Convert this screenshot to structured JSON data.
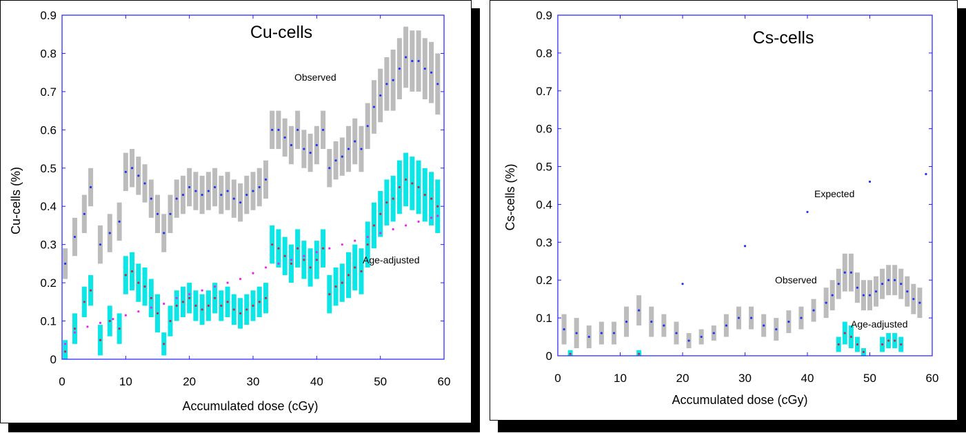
{
  "chart_data": [
    {
      "type": "line",
      "title": "Cu-cells",
      "xlabel": "Accumulated dose (cGy)",
      "ylabel": "Cu-cells (%)",
      "xlim": [
        0,
        60
      ],
      "ylim": [
        0,
        0.9
      ],
      "x_ticks": [
        "0",
        "10",
        "20",
        "30",
        "40",
        "50",
        "60"
      ],
      "y_ticks": [
        "0",
        "0.1",
        "0.2",
        "0.3",
        "0.4",
        "0.5",
        "0.6",
        "0.7",
        "0.8",
        "0.9"
      ],
      "grid": false,
      "annotations": [
        {
          "text": "Observed",
          "x": 37,
          "y": 0.73
        },
        {
          "text": "Age-adjusted",
          "x": 47,
          "y": 0.25
        }
      ],
      "series": [
        {
          "label": "Observed",
          "marker_color": "#2233ee",
          "band_color": "#b8b8b8",
          "x": [
            0.5,
            2,
            3.5,
            4.5,
            6,
            7.5,
            9,
            10,
            11,
            12,
            13,
            14,
            15,
            16,
            17,
            18,
            19,
            20,
            21,
            22,
            23,
            24,
            25,
            26,
            27,
            28,
            29,
            30,
            31,
            32,
            33,
            34,
            35,
            36,
            37,
            38,
            39,
            40,
            41,
            42,
            43,
            44,
            45,
            46,
            47,
            48,
            49,
            50,
            51,
            52,
            53,
            54,
            55,
            56,
            57,
            58,
            59
          ],
          "y": [
            0.25,
            0.32,
            0.38,
            0.45,
            0.3,
            0.33,
            0.36,
            0.49,
            0.5,
            0.48,
            0.46,
            0.42,
            0.38,
            0.33,
            0.38,
            0.42,
            0.43,
            0.45,
            0.44,
            0.43,
            0.44,
            0.45,
            0.43,
            0.44,
            0.42,
            0.41,
            0.43,
            0.44,
            0.45,
            0.47,
            0.6,
            0.6,
            0.58,
            0.56,
            0.6,
            0.55,
            0.54,
            0.56,
            0.6,
            0.5,
            0.52,
            0.53,
            0.55,
            0.57,
            0.55,
            0.61,
            0.66,
            0.69,
            0.72,
            0.73,
            0.76,
            0.79,
            0.78,
            0.78,
            0.76,
            0.75,
            0.72
          ],
          "err": [
            0.04,
            0.05,
            0.05,
            0.05,
            0.05,
            0.05,
            0.05,
            0.05,
            0.05,
            0.05,
            0.05,
            0.05,
            0.05,
            0.05,
            0.05,
            0.05,
            0.05,
            0.05,
            0.05,
            0.05,
            0.05,
            0.05,
            0.05,
            0.05,
            0.05,
            0.05,
            0.05,
            0.05,
            0.05,
            0.05,
            0.05,
            0.05,
            0.05,
            0.05,
            0.05,
            0.05,
            0.05,
            0.05,
            0.05,
            0.05,
            0.05,
            0.05,
            0.06,
            0.06,
            0.06,
            0.06,
            0.07,
            0.07,
            0.07,
            0.08,
            0.08,
            0.08,
            0.08,
            0.08,
            0.08,
            0.08,
            0.08
          ]
        },
        {
          "label": "Age-adjusted",
          "marker_color": "#cc2244",
          "band_color": "#00e5e5",
          "x": [
            0.5,
            2,
            3.5,
            4.5,
            6,
            7.5,
            9,
            10,
            11,
            12,
            13,
            14,
            15,
            16,
            17,
            18,
            19,
            20,
            21,
            22,
            23,
            24,
            25,
            26,
            27,
            28,
            29,
            30,
            31,
            32,
            33,
            34,
            35,
            36,
            37,
            38,
            39,
            40,
            41,
            42,
            43,
            44,
            45,
            46,
            47,
            48,
            49,
            50,
            51,
            52,
            53,
            54,
            55,
            56,
            57,
            58,
            59
          ],
          "y": [
            0.02,
            0.08,
            0.15,
            0.18,
            0.05,
            0.1,
            0.08,
            0.22,
            0.23,
            0.2,
            0.19,
            0.16,
            0.12,
            0.04,
            0.1,
            0.14,
            0.15,
            0.16,
            0.14,
            0.13,
            0.14,
            0.16,
            0.14,
            0.15,
            0.13,
            0.12,
            0.13,
            0.14,
            0.15,
            0.16,
            0.3,
            0.29,
            0.27,
            0.25,
            0.29,
            0.26,
            0.24,
            0.26,
            0.29,
            0.17,
            0.19,
            0.2,
            0.22,
            0.24,
            0.23,
            0.3,
            0.35,
            0.38,
            0.41,
            0.42,
            0.45,
            0.47,
            0.46,
            0.45,
            0.43,
            0.42,
            0.4
          ],
          "err": [
            0.03,
            0.04,
            0.04,
            0.04,
            0.04,
            0.04,
            0.04,
            0.05,
            0.05,
            0.05,
            0.05,
            0.05,
            0.05,
            0.03,
            0.04,
            0.04,
            0.04,
            0.04,
            0.04,
            0.04,
            0.04,
            0.04,
            0.04,
            0.04,
            0.04,
            0.04,
            0.04,
            0.04,
            0.04,
            0.04,
            0.05,
            0.05,
            0.05,
            0.05,
            0.05,
            0.05,
            0.05,
            0.05,
            0.05,
            0.05,
            0.05,
            0.05,
            0.06,
            0.06,
            0.06,
            0.06,
            0.06,
            0.06,
            0.06,
            0.06,
            0.07,
            0.07,
            0.07,
            0.07,
            0.07,
            0.07,
            0.07
          ]
        },
        {
          "label": "",
          "marker_color": "#ee22ee",
          "band_color": "",
          "x": [
            0.5,
            2,
            4,
            6,
            8,
            10,
            12,
            14,
            16,
            18,
            20,
            22,
            24,
            26,
            28,
            30,
            32,
            34,
            36,
            38,
            40,
            42,
            44,
            46,
            48,
            50,
            52,
            54,
            56,
            58,
            59
          ],
          "y": [
            0.04,
            0.07,
            0.085,
            0.095,
            0.105,
            0.115,
            0.125,
            0.135,
            0.145,
            0.16,
            0.17,
            0.18,
            0.19,
            0.2,
            0.21,
            0.225,
            0.24,
            0.25,
            0.26,
            0.27,
            0.28,
            0.29,
            0.3,
            0.31,
            0.32,
            0.33,
            0.34,
            0.35,
            0.36,
            0.37,
            0.375
          ],
          "err": []
        }
      ]
    },
    {
      "type": "line",
      "title": "Cs-cells",
      "xlabel": "Accumulated dose (cGy)",
      "ylabel": "Cs-cells (%)",
      "xlim": [
        0,
        60
      ],
      "ylim": [
        0,
        0.9
      ],
      "x_ticks": [
        "0",
        "10",
        "20",
        "30",
        "40",
        "50",
        "60"
      ],
      "y_ticks": [
        "0",
        "0.1",
        "0.2",
        "0.3",
        "0.4",
        "0.5",
        "0.6",
        "0.7",
        "0.8",
        "0.9"
      ],
      "grid": false,
      "annotations": [
        {
          "text": "Expected",
          "x": 42,
          "y": 0.41
        },
        {
          "text": "Observed",
          "x": 38,
          "y": 0.195
        },
        {
          "text": "Age-adjusted",
          "x": 47,
          "y": 0.08
        }
      ],
      "series": [
        {
          "label": "Expected",
          "marker_color": "#2233ee",
          "band_color": "",
          "x": [
            13,
            20,
            30,
            40,
            50,
            59
          ],
          "y": [
            0.12,
            0.19,
            0.29,
            0.38,
            0.46,
            0.48
          ],
          "err": []
        },
        {
          "label": "Observed",
          "marker_color": "#2233ee",
          "band_color": "#b8b8b8",
          "x": [
            1,
            3,
            5,
            7,
            9,
            11,
            13,
            15,
            17,
            19,
            21,
            23,
            25,
            27,
            29,
            31,
            33,
            35,
            37,
            39,
            41,
            43,
            44,
            45,
            46,
            47,
            48,
            49,
            50,
            51,
            52,
            53,
            54,
            55,
            56,
            57,
            58
          ],
          "y": [
            0.07,
            0.06,
            0.05,
            0.06,
            0.06,
            0.09,
            0.12,
            0.09,
            0.08,
            0.06,
            0.04,
            0.05,
            0.06,
            0.08,
            0.1,
            0.1,
            0.08,
            0.07,
            0.09,
            0.1,
            0.12,
            0.14,
            0.16,
            0.19,
            0.22,
            0.22,
            0.18,
            0.16,
            0.16,
            0.17,
            0.19,
            0.2,
            0.2,
            0.19,
            0.17,
            0.15,
            0.14
          ],
          "err": [
            0.04,
            0.04,
            0.03,
            0.03,
            0.03,
            0.04,
            0.04,
            0.04,
            0.03,
            0.03,
            0.02,
            0.02,
            0.02,
            0.03,
            0.03,
            0.03,
            0.03,
            0.03,
            0.03,
            0.03,
            0.03,
            0.04,
            0.04,
            0.04,
            0.05,
            0.05,
            0.04,
            0.04,
            0.04,
            0.04,
            0.04,
            0.04,
            0.04,
            0.04,
            0.04,
            0.04,
            0.04
          ]
        },
        {
          "label": "Age-adjusted",
          "marker_color": "#cc2244",
          "band_color": "#00e5e5",
          "x": [
            2,
            13,
            45,
            46,
            47,
            48,
            49,
            52,
            53,
            54,
            55
          ],
          "y": [
            0.005,
            0.005,
            0.03,
            0.06,
            0.05,
            0.03,
            0.01,
            0.03,
            0.04,
            0.04,
            0.03
          ],
          "err": [
            0.01,
            0.01,
            0.02,
            0.03,
            0.03,
            0.02,
            0.01,
            0.02,
            0.02,
            0.02,
            0.02
          ]
        }
      ]
    }
  ]
}
